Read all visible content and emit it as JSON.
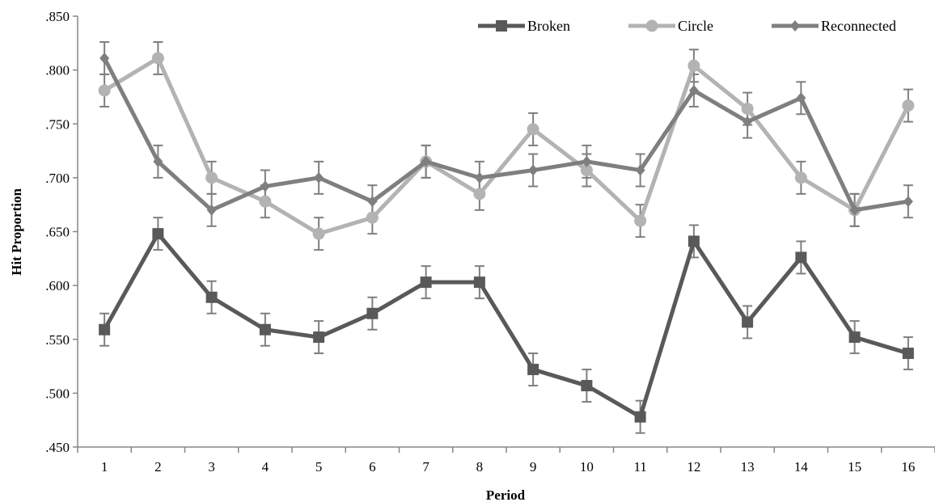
{
  "chart_data": {
    "type": "line",
    "title": "",
    "xlabel": "Period",
    "ylabel": "Hit Proportion",
    "x": [
      "1",
      "2",
      "3",
      "4",
      "5",
      "6",
      "7",
      "8",
      "9",
      "10",
      "11",
      "12",
      "13",
      "14",
      "15",
      "16"
    ],
    "ylim": [
      0.45,
      0.85
    ],
    "yticks": [
      ".450",
      ".500",
      ".550",
      ".600",
      ".650",
      ".700",
      ".750",
      ".800",
      ".850"
    ],
    "ytick_values": [
      0.45,
      0.5,
      0.55,
      0.6,
      0.65,
      0.7,
      0.75,
      0.8,
      0.85
    ],
    "grid": false,
    "legend_position": "top-right",
    "error_bar": 0.015,
    "series": [
      {
        "name": "Broken",
        "marker": "square",
        "color": "#595959",
        "values": [
          0.559,
          0.648,
          0.589,
          0.559,
          0.552,
          0.574,
          0.603,
          0.603,
          0.522,
          0.507,
          0.478,
          0.641,
          0.566,
          0.626,
          0.552,
          0.537
        ]
      },
      {
        "name": "Circle",
        "marker": "circle",
        "color": "#b3b3b3",
        "values": [
          0.781,
          0.811,
          0.7,
          0.678,
          0.648,
          0.663,
          0.715,
          0.685,
          0.745,
          0.707,
          0.66,
          0.804,
          0.764,
          0.7,
          0.67,
          0.767
        ]
      },
      {
        "name": "Reconnected",
        "marker": "diamond",
        "color": "#7f7f7f",
        "values": [
          0.811,
          0.715,
          0.67,
          0.692,
          0.7,
          0.678,
          0.715,
          0.7,
          0.707,
          0.715,
          0.707,
          0.781,
          0.752,
          0.774,
          0.67,
          0.678
        ]
      }
    ]
  }
}
